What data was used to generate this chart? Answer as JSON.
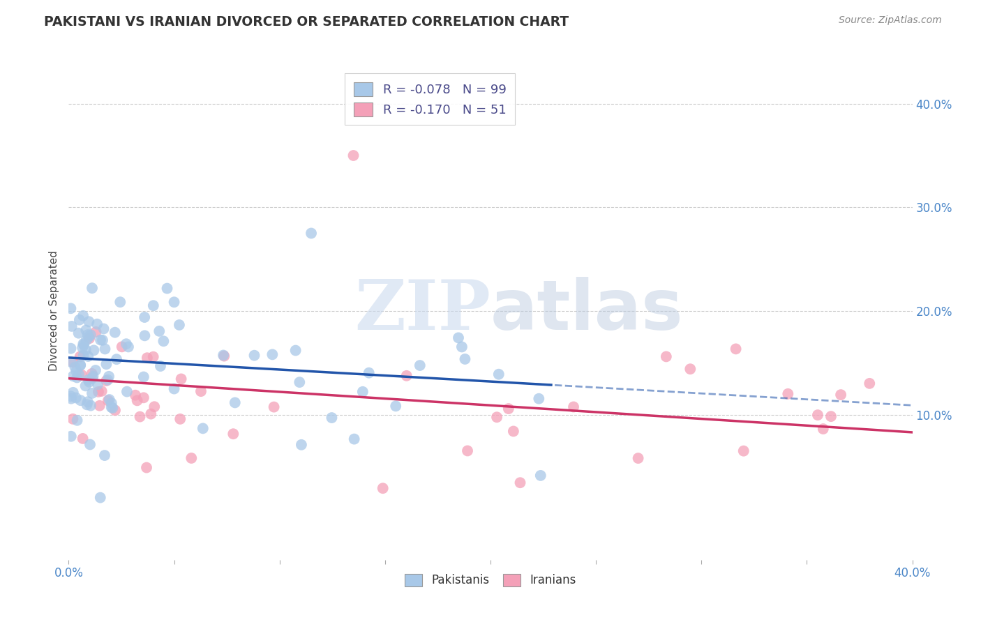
{
  "title": "PAKISTANI VS IRANIAN DIVORCED OR SEPARATED CORRELATION CHART",
  "source": "Source: ZipAtlas.com",
  "ylabel": "Divorced or Separated",
  "xlim": [
    0.0,
    0.4
  ],
  "ylim": [
    -0.04,
    0.44
  ],
  "pakistani_R": -0.078,
  "pakistani_N": 99,
  "iranian_R": -0.17,
  "iranian_N": 51,
  "pakistani_color": "#a8c8e8",
  "pakistani_line_color": "#2255aa",
  "iranian_color": "#f4a0b8",
  "iranian_line_color": "#cc3366",
  "watermark_zip": "ZIP",
  "watermark_atlas": "atlas",
  "bg_color": "#ffffff",
  "grid_color": "#cccccc",
  "title_color": "#333333",
  "source_color": "#888888",
  "axis_label_color": "#4a86c8",
  "legend_R_color": "#cc3333",
  "legend_N_color": "#4a86c8",
  "legend_label_color": "#333333"
}
